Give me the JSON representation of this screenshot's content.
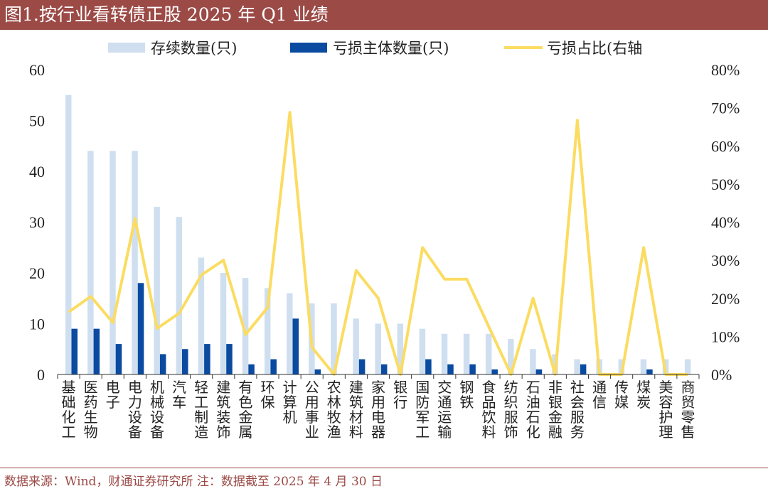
{
  "header": {
    "title": "图1.按行业看转债正股 2025 年 Q1 业绩"
  },
  "footer": {
    "source": "数据来源：Wind，财通证券研究所   注：数据截至 2025 年 4 月 30 日"
  },
  "colors": {
    "header_bg": "#9b4a46",
    "bar_total": "#cfdff0",
    "bar_loss": "#0a4aa0",
    "line_ratio": "#fbdc62"
  },
  "chart_data": {
    "type": "bar",
    "legend": [
      "存续数量(只)",
      "亏损主体数量(只)",
      "亏损占比(右轴"
    ],
    "legend_position": "top",
    "categories": [
      "基础化工",
      "医药生物",
      "电子",
      "电力设备",
      "机械设备",
      "汽车",
      "轻工制造",
      "建筑装饰",
      "有色金属",
      "环保",
      "计算机",
      "公用事业",
      "农林牧渔",
      "建筑材料",
      "家用电器",
      "银行",
      "国防军工",
      "交通运输",
      "钢铁",
      "食品饮料",
      "纺织服饰",
      "石油石化",
      "非银金融",
      "社会服务",
      "通信",
      "传媒",
      "煤炭",
      "美容护理",
      "商贸零售"
    ],
    "series": [
      {
        "name": "存续数量(只)",
        "type": "bar",
        "axis": "left",
        "values": [
          55,
          44,
          44,
          44,
          33,
          31,
          23,
          20,
          19,
          17,
          16,
          14,
          14,
          11,
          10,
          10,
          9,
          8,
          8,
          8,
          7,
          5,
          4,
          3,
          3,
          3,
          3,
          3,
          3
        ]
      },
      {
        "name": "亏损主体数量(只)",
        "type": "bar",
        "axis": "left",
        "values": [
          9,
          9,
          6,
          18,
          4,
          5,
          6,
          6,
          2,
          3,
          11,
          1,
          0,
          3,
          2,
          0,
          3,
          2,
          2,
          1,
          0,
          1,
          0,
          2,
          0,
          0,
          1,
          0,
          0
        ]
      },
      {
        "name": "亏损占比(右轴",
        "type": "line",
        "axis": "right",
        "values": [
          16.4,
          20.5,
          13.6,
          40.9,
          12.1,
          16.1,
          26.1,
          30.0,
          10.5,
          17.6,
          68.8,
          7.1,
          0,
          27.3,
          20.0,
          0,
          33.3,
          25.0,
          25.0,
          12.5,
          0,
          20.0,
          0,
          66.7,
          0,
          0,
          33.3,
          0,
          0
        ]
      }
    ],
    "y_left": {
      "range": [
        0,
        60
      ],
      "ticks": [
        "0",
        "10",
        "20",
        "30",
        "40",
        "50",
        "60"
      ]
    },
    "y_right": {
      "range": [
        0,
        80
      ],
      "ticks": [
        "0%",
        "10%",
        "20%",
        "30%",
        "40%",
        "50%",
        "60%",
        "70%",
        "80%"
      ]
    },
    "grid": false
  }
}
